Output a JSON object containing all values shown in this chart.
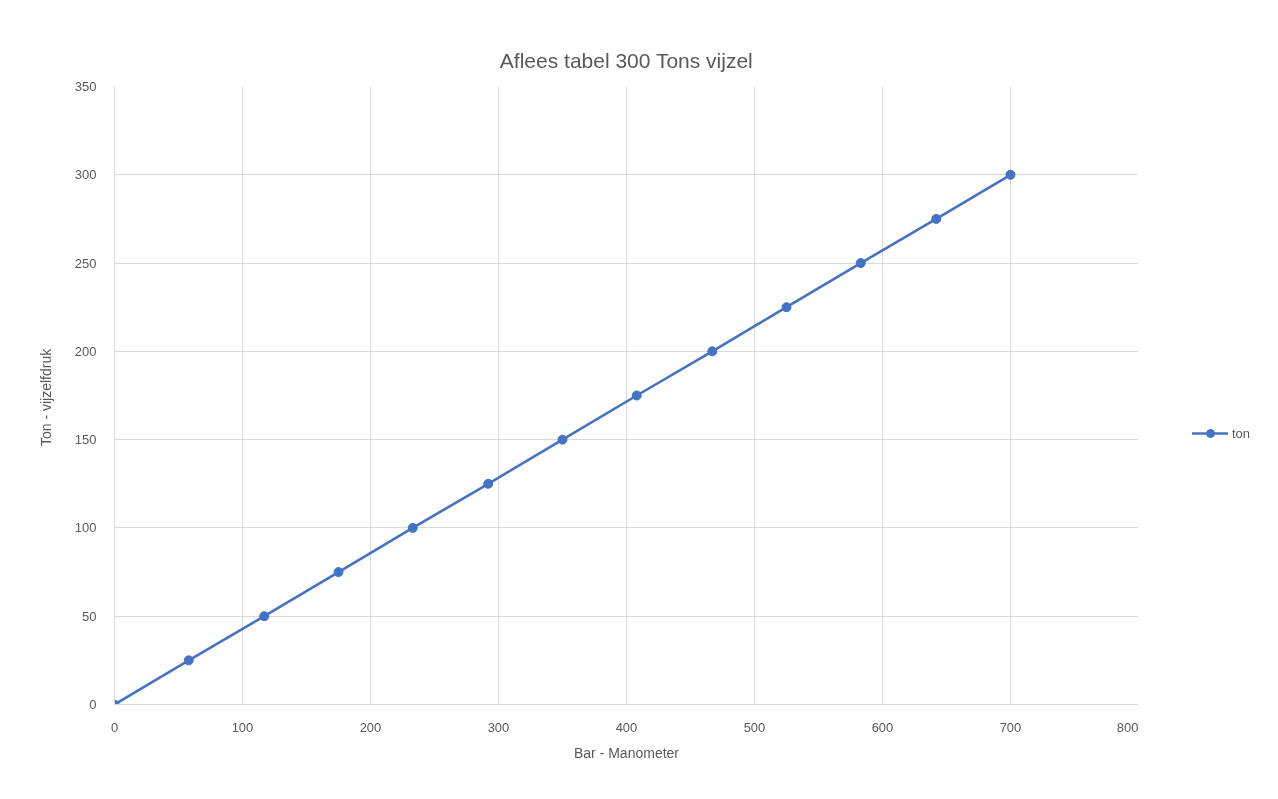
{
  "chart_data": {
    "type": "line",
    "title": "Aflees tabel 300 Tons vijzel",
    "xlabel": "Bar - Manometer",
    "ylabel": "Ton  - vijzelfdruk",
    "x": [
      0,
      58,
      117,
      175,
      233,
      292,
      350,
      408,
      467,
      525,
      583,
      642,
      700
    ],
    "series": [
      {
        "name": "ton",
        "color": "#4472c4",
        "values": [
          0,
          25,
          50,
          75,
          100,
          125,
          150,
          175,
          200,
          225,
          250,
          275,
          300
        ]
      }
    ],
    "xlim": [
      0,
      800
    ],
    "xticks": [
      0,
      100,
      200,
      300,
      400,
      500,
      600,
      700,
      800
    ],
    "ylim": [
      0,
      350
    ],
    "yticks": [
      0,
      50,
      100,
      150,
      200,
      250,
      300,
      350
    ],
    "grid": true,
    "legend": "right",
    "marker": "circle",
    "line_style": "solid"
  }
}
